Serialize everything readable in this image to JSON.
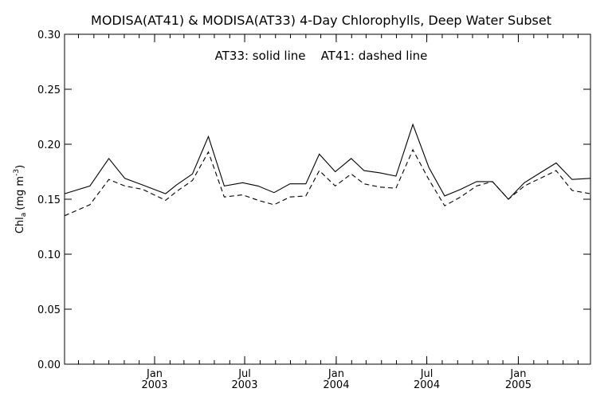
{
  "chart_data": {
    "type": "line",
    "title": "MODISA(AT41) & MODISA(AT33) 4-Day Chlorophylls, Deep Water Subset",
    "annotation": "AT33: solid line    AT41: dashed line",
    "ylabel": "Chl",
    "ylabel_sub": "a",
    "ylabel_unit": "(mg m",
    "ylabel_sup": "-3",
    "ylabel_close": ")",
    "ylim": [
      0.0,
      0.3
    ],
    "yticks": [
      "0.00",
      "0.05",
      "0.10",
      "0.15",
      "0.20",
      "0.25",
      "0.30"
    ],
    "xlim": [
      "2002-07-04",
      "2005-05-26"
    ],
    "xtick_labels": [
      {
        "date": "2003-01-01",
        "month": "Jan",
        "year": "2003"
      },
      {
        "date": "2003-07-01",
        "month": "Jul",
        "year": "2003"
      },
      {
        "date": "2004-01-01",
        "month": "Jan",
        "year": "2004"
      },
      {
        "date": "2004-07-01",
        "month": "Jul",
        "year": "2004"
      },
      {
        "date": "2005-01-01",
        "month": "Jan",
        "year": "2005"
      }
    ],
    "grid": false,
    "series": [
      {
        "name": "AT33",
        "style": "solid",
        "color": "#000000",
        "points": [
          [
            "2002-07-04",
            0.155
          ],
          [
            "2002-08-24",
            0.162
          ],
          [
            "2002-10-01",
            0.187
          ],
          [
            "2002-11-02",
            0.169
          ],
          [
            "2002-12-08",
            0.163
          ],
          [
            "2003-01-23",
            0.155
          ],
          [
            "2003-02-14",
            0.163
          ],
          [
            "2003-03-18",
            0.173
          ],
          [
            "2003-04-19",
            0.207
          ],
          [
            "2003-05-21",
            0.162
          ],
          [
            "2003-06-27",
            0.165
          ],
          [
            "2003-07-28",
            0.162
          ],
          [
            "2003-08-29",
            0.156
          ],
          [
            "2003-09-30",
            0.164
          ],
          [
            "2003-11-01",
            0.164
          ],
          [
            "2003-11-28",
            0.191
          ],
          [
            "2003-12-30",
            0.175
          ],
          [
            "2004-01-31",
            0.187
          ],
          [
            "2004-02-26",
            0.176
          ],
          [
            "2004-03-29",
            0.174
          ],
          [
            "2004-04-30",
            0.171
          ],
          [
            "2004-06-03",
            0.218
          ],
          [
            "2004-07-05",
            0.179
          ],
          [
            "2004-08-06",
            0.153
          ],
          [
            "2004-09-07",
            0.159
          ],
          [
            "2004-10-09",
            0.166
          ],
          [
            "2004-11-10",
            0.166
          ],
          [
            "2004-12-12",
            0.15
          ],
          [
            "2005-01-13",
            0.165
          ],
          [
            "2005-02-14",
            0.174
          ],
          [
            "2005-03-18",
            0.183
          ],
          [
            "2005-04-19",
            0.168
          ],
          [
            "2005-05-26",
            0.169
          ]
        ]
      },
      {
        "name": "AT41",
        "style": "dashed",
        "color": "#000000",
        "points": [
          [
            "2002-07-04",
            0.135
          ],
          [
            "2002-08-24",
            0.145
          ],
          [
            "2002-10-01",
            0.168
          ],
          [
            "2002-11-02",
            0.162
          ],
          [
            "2002-12-08",
            0.159
          ],
          [
            "2003-01-23",
            0.149
          ],
          [
            "2003-02-14",
            0.157
          ],
          [
            "2003-03-18",
            0.167
          ],
          [
            "2003-04-19",
            0.193
          ],
          [
            "2003-05-21",
            0.152
          ],
          [
            "2003-06-27",
            0.154
          ],
          [
            "2003-07-28",
            0.149
          ],
          [
            "2003-08-29",
            0.145
          ],
          [
            "2003-09-30",
            0.152
          ],
          [
            "2003-11-01",
            0.153
          ],
          [
            "2003-11-28",
            0.176
          ],
          [
            "2003-12-30",
            0.162
          ],
          [
            "2004-01-31",
            0.173
          ],
          [
            "2004-02-26",
            0.164
          ],
          [
            "2004-03-29",
            0.161
          ],
          [
            "2004-04-30",
            0.16
          ],
          [
            "2004-06-03",
            0.195
          ],
          [
            "2004-07-05",
            0.168
          ],
          [
            "2004-08-06",
            0.144
          ],
          [
            "2004-09-07",
            0.152
          ],
          [
            "2004-10-09",
            0.162
          ],
          [
            "2004-11-10",
            0.166
          ],
          [
            "2004-12-12",
            0.15
          ],
          [
            "2005-01-13",
            0.162
          ],
          [
            "2005-02-14",
            0.169
          ],
          [
            "2005-03-18",
            0.176
          ],
          [
            "2005-04-19",
            0.158
          ],
          [
            "2005-05-26",
            0.155
          ]
        ]
      }
    ]
  }
}
